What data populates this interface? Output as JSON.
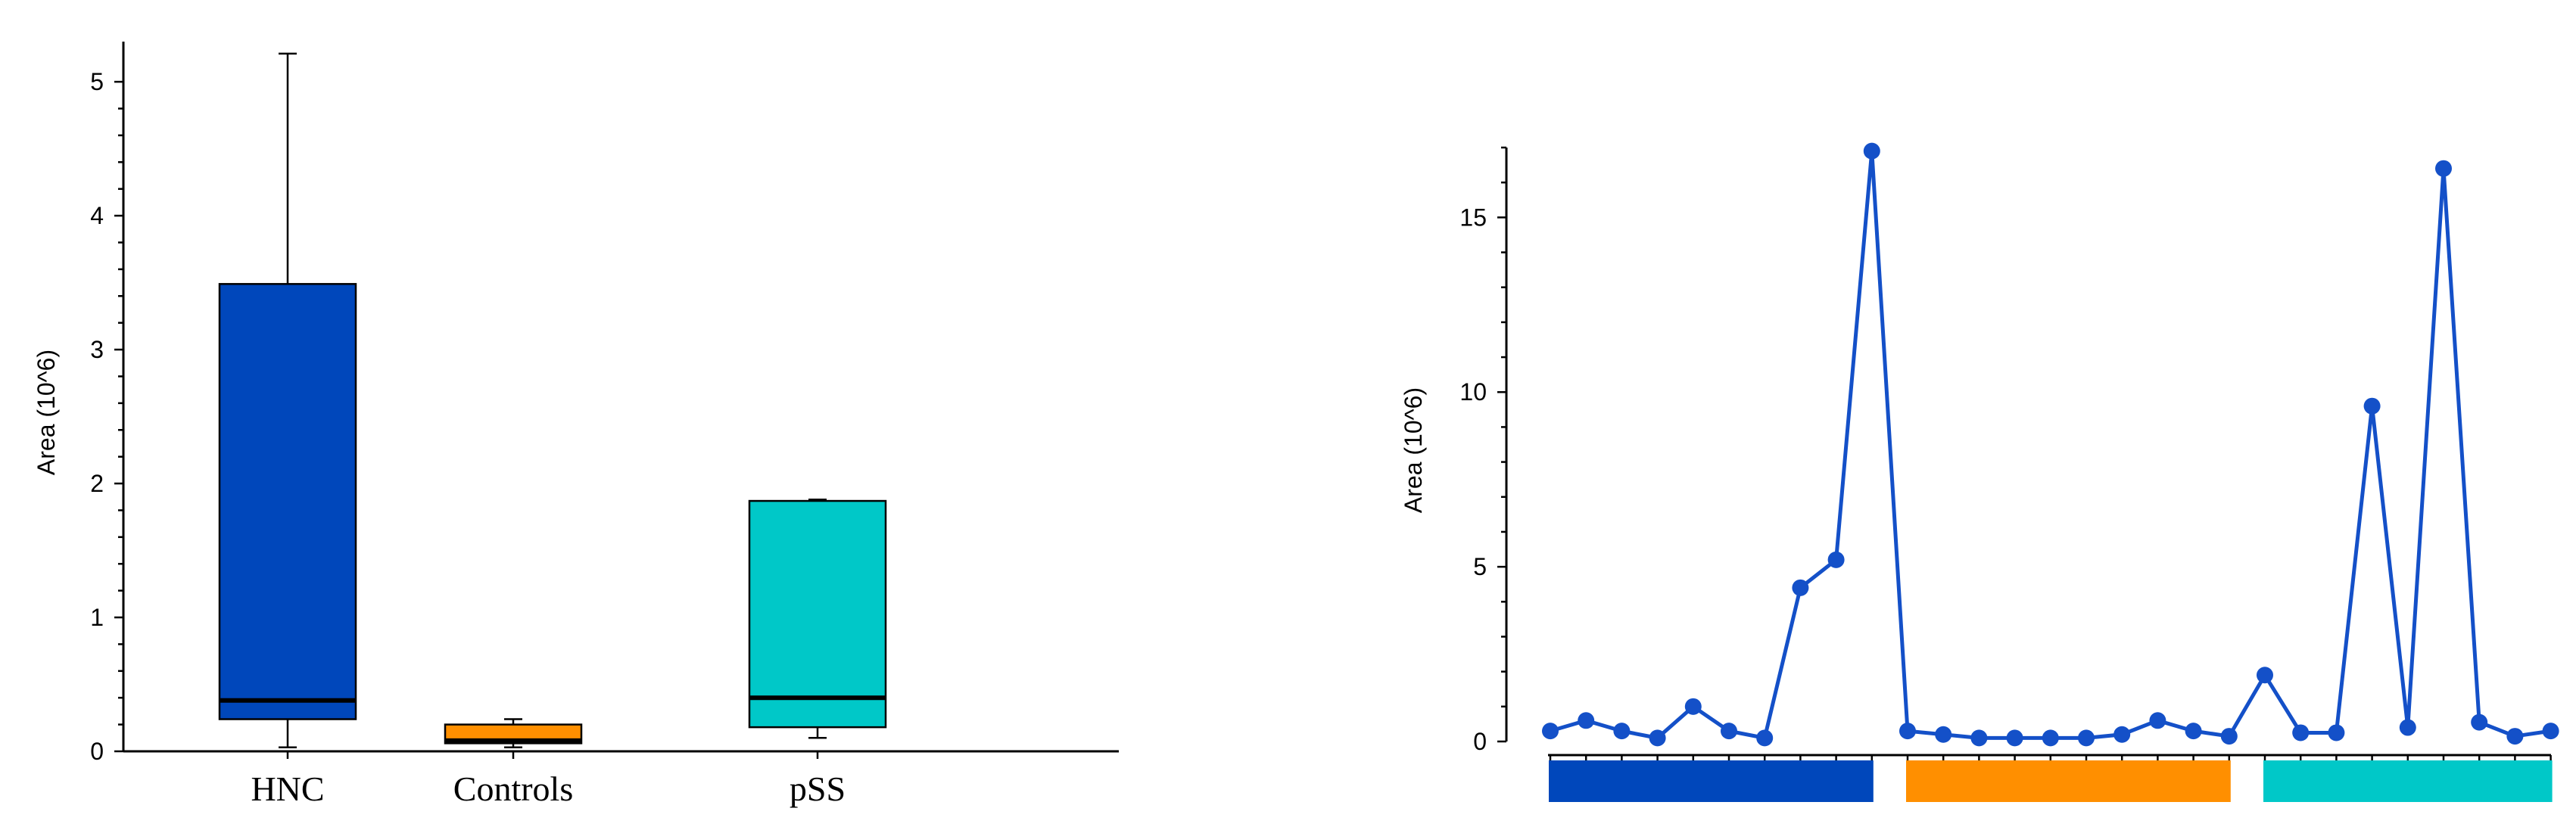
{
  "chart_data": [
    {
      "type": "box",
      "ylabel": "Area (10^6)",
      "ylim": [
        0,
        5.3
      ],
      "yticks": [
        "0",
        "1",
        "2",
        "3",
        "4",
        "5"
      ],
      "categories": [
        "HNC",
        "Controls",
        "pSS"
      ],
      "colors": [
        "#0047BB",
        "#FF8F00",
        "#00C8C8"
      ],
      "boxes": [
        {
          "name": "HNC",
          "min": 0.03,
          "q1": 0.24,
          "median": 0.38,
          "q3": 3.49,
          "max": 5.21
        },
        {
          "name": "Controls",
          "min": 0.03,
          "q1": 0.06,
          "median": 0.08,
          "q3": 0.2,
          "max": 0.24
        },
        {
          "name": "pSS",
          "min": 0.1,
          "q1": 0.18,
          "median": 0.4,
          "q3": 1.87,
          "max": 1.88
        }
      ]
    },
    {
      "type": "line",
      "ylabel": "Area (10^6)",
      "ylim": [
        0,
        17
      ],
      "yticks": [
        "0",
        "5",
        "10",
        "15"
      ],
      "line_color": "#1450C8",
      "values": [
        0.3,
        0.6,
        0.3,
        0.1,
        1.0,
        0.3,
        0.1,
        4.4,
        5.2,
        16.9,
        0.3,
        0.2,
        0.1,
        0.1,
        0.1,
        0.1,
        0.2,
        0.6,
        0.3,
        0.15,
        1.9,
        0.25,
        0.25,
        9.6,
        0.4,
        16.4,
        0.55,
        0.15,
        0.3
      ],
      "groups": [
        {
          "color": "#0047BB",
          "start": 0,
          "end": 9
        },
        {
          "color": "#FF8F00",
          "start": 10,
          "end": 19
        },
        {
          "color": "#00C8C8",
          "start": 20,
          "end": 28
        }
      ]
    }
  ]
}
